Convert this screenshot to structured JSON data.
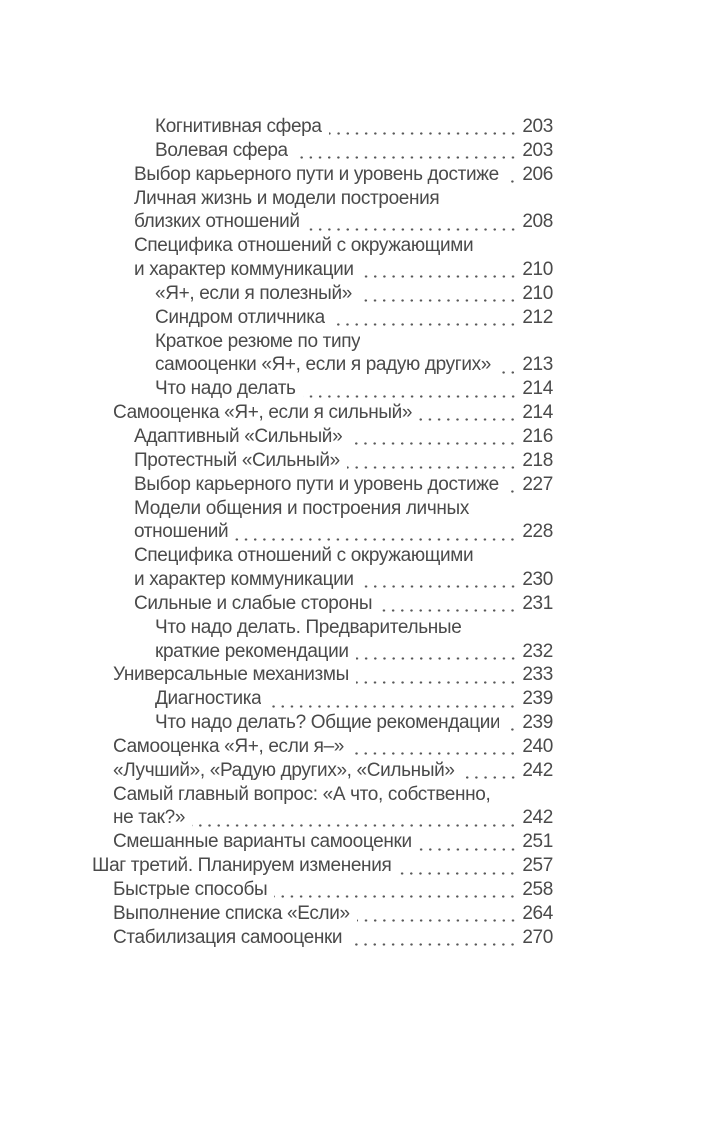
{
  "page": {
    "background_color": "#ffffff",
    "text_color": "#4a4a4a",
    "dot_leader_color": "#585858",
    "kind": "book-table-of-contents"
  },
  "toc": {
    "lines": [
      {
        "indent": 3,
        "text": "Когнитивная сфера",
        "page": "203"
      },
      {
        "indent": 3,
        "text": "Волевая сфера",
        "page": "203"
      },
      {
        "indent": 2,
        "text": "Выбор карьерного пути и уровень достижений",
        "page": "206"
      },
      {
        "indent": 2,
        "text": "Личная жизнь и модели построения",
        "page": null
      },
      {
        "indent": 2,
        "text": "близких отношений",
        "page": "208"
      },
      {
        "indent": 2,
        "text": "Специфика отношений с окружающими",
        "page": null
      },
      {
        "indent": 2,
        "text": "и характер коммуникации",
        "page": "210"
      },
      {
        "indent": 3,
        "text": "«Я+, если я полезный»",
        "page": "210"
      },
      {
        "indent": 3,
        "text": "Синдром отличника",
        "page": "212"
      },
      {
        "indent": 3,
        "text": "Краткое резюме по типу",
        "page": null
      },
      {
        "indent": 3,
        "text": "самооценки «Я+, если я радую других»",
        "page": "213"
      },
      {
        "indent": 3,
        "text": "Что надо делать",
        "page": "214"
      },
      {
        "indent": 1,
        "text": "Самооценка «Я+, если я сильный»",
        "page": "214"
      },
      {
        "indent": 2,
        "text": "Адаптивный «Сильный»",
        "page": "216"
      },
      {
        "indent": 2,
        "text": "Протестный «Сильный»",
        "page": "218"
      },
      {
        "indent": 2,
        "text": "Выбор карьерного пути и уровень достижений",
        "page": "227"
      },
      {
        "indent": 2,
        "text": "Модели общения и построения личных",
        "page": null
      },
      {
        "indent": 2,
        "text": "отношений",
        "page": "228"
      },
      {
        "indent": 2,
        "text": "Специфика отношений с окружающими",
        "page": null
      },
      {
        "indent": 2,
        "text": "и характер коммуникации",
        "page": "230"
      },
      {
        "indent": 2,
        "text": "Сильные и слабые стороны",
        "page": "231"
      },
      {
        "indent": 3,
        "text": "Что надо делать. Предварительные",
        "page": null
      },
      {
        "indent": 3,
        "text": "краткие рекомендации",
        "page": "232"
      },
      {
        "indent": 1,
        "text": "Универсальные механизмы",
        "page": "233"
      },
      {
        "indent": 3,
        "text": "Диагностика",
        "page": "239"
      },
      {
        "indent": 3,
        "text": "Что надо делать? Общие рекомендации",
        "page": "239"
      },
      {
        "indent": 1,
        "text": "Самооценка «Я+, если я–»",
        "page": "240"
      },
      {
        "indent": 1,
        "text": "«Лучший», «Радую других», «Сильный»",
        "page": "242"
      },
      {
        "indent": 1,
        "text": "Самый главный вопрос: «А что, собственно,",
        "page": null
      },
      {
        "indent": 1,
        "text": "не так?»",
        "page": "242"
      },
      {
        "indent": 1,
        "text": "Смешанные варианты самооценки",
        "page": "251"
      },
      {
        "indent": 0,
        "text": "Шаг третий. Планируем изменения",
        "page": "257"
      },
      {
        "indent": 1,
        "text": "Быстрые способы",
        "page": "258"
      },
      {
        "indent": 1,
        "text": "Выполнение списка «Если»",
        "page": "264"
      },
      {
        "indent": 1,
        "text": "Стабилизация самооценки",
        "page": "270"
      }
    ]
  }
}
